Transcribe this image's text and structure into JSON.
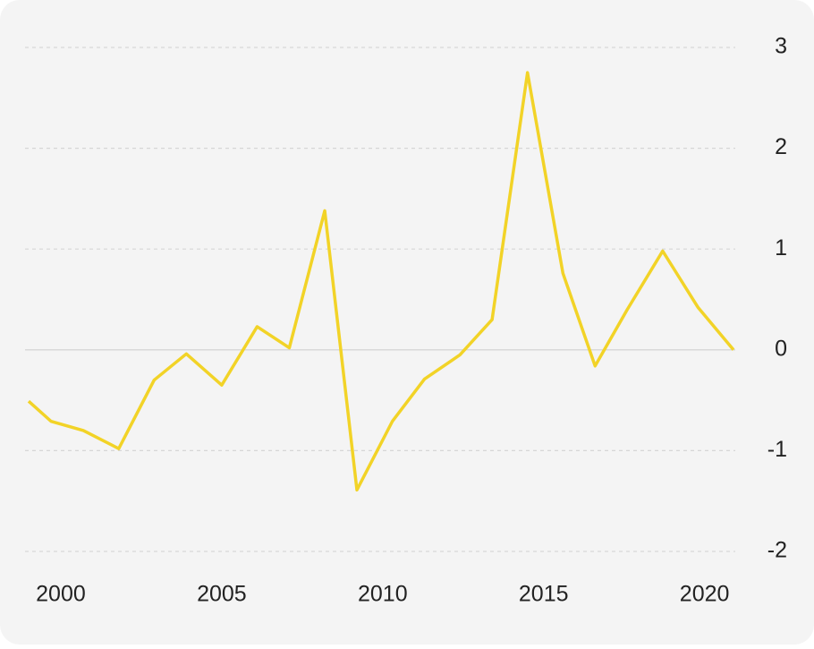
{
  "chart_data": {
    "type": "line",
    "x": [
      1999.0,
      1999.7,
      2000.7,
      2001.8,
      2002.9,
      2003.9,
      2005.0,
      2006.1,
      2007.1,
      2008.2,
      2009.2,
      2010.3,
      2011.3,
      2012.4,
      2013.4,
      2014.5,
      2015.6,
      2016.6,
      2017.6,
      2018.7,
      2019.8,
      2020.9
    ],
    "values": [
      -0.51,
      -0.71,
      -0.8,
      -0.98,
      -0.3,
      -0.04,
      -0.35,
      0.23,
      0.02,
      1.38,
      -1.39,
      -0.71,
      -0.29,
      -0.05,
      0.3,
      2.75,
      0.76,
      -0.16,
      0.4,
      0.98,
      0.42,
      0
    ],
    "color": "#f2d327",
    "xlim": [
      1999.0,
      2020.9
    ],
    "xticks": [
      2000,
      2005,
      2010,
      2015,
      2020
    ],
    "ylim": [
      -2,
      3
    ],
    "yticks": [
      -2,
      -1,
      0,
      1,
      2,
      3
    ],
    "grid": true
  }
}
